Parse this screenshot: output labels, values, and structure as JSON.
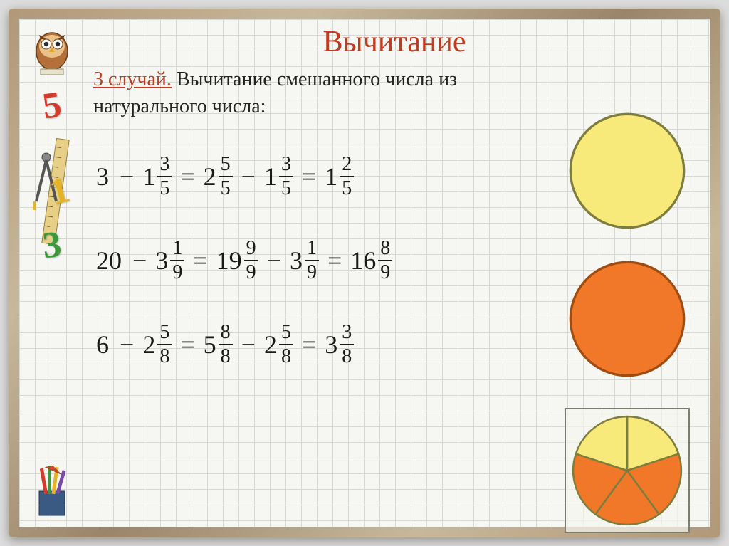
{
  "sidebar": {
    "num5": "5",
    "num5_color": "#d63a2a",
    "num1": "1",
    "num1_color": "#e6b422",
    "num3": "3",
    "num3_color": "#3a9a3a"
  },
  "title": "Вычитание",
  "title_color": "#c23b1e",
  "case_label": "3 случай.",
  "description": "Вычитание смешанного числа из натурального числа:",
  "text_color": "#232323",
  "equations": [
    {
      "lhs_whole": "3",
      "minus": "−",
      "sub_whole": "1",
      "sub_num": "3",
      "sub_den": "5",
      "eq": "=",
      "mid_whole": "2",
      "mid_num": "5",
      "mid_den": "5",
      "minus2": "−",
      "mid2_whole": "1",
      "mid2_num": "3",
      "mid2_den": "5",
      "eq2": "=",
      "res_whole": "1",
      "res_num": "2",
      "res_den": "5"
    },
    {
      "lhs_whole": "20",
      "minus": "−",
      "sub_whole": "3",
      "sub_num": "1",
      "sub_den": "9",
      "eq": "=",
      "mid_whole": "19",
      "mid_num": "9",
      "mid_den": "9",
      "minus2": "−",
      "mid2_whole": "3",
      "mid2_num": "1",
      "mid2_den": "9",
      "eq2": "=",
      "res_whole": "16",
      "res_num": "8",
      "res_den": "9"
    },
    {
      "lhs_whole": "6",
      "minus": "−",
      "sub_whole": "2",
      "sub_num": "5",
      "sub_den": "8",
      "eq": "=",
      "mid_whole": "5",
      "mid_num": "8",
      "mid_den": "8",
      "minus2": "−",
      "mid2_whole": "2",
      "mid2_num": "5",
      "mid2_den": "8",
      "eq2": "=",
      "res_whole": "3",
      "res_num": "3",
      "res_den": "8"
    }
  ],
  "circles": {
    "circle1": {
      "fill": "#f7e97a",
      "stroke": "#7d7d3e",
      "has_border_box": false
    },
    "circle2": {
      "fill": "#f07828",
      "stroke": "#a04c10",
      "has_border_box": false
    },
    "pie": {
      "slices": 5,
      "colors": [
        "#f7e97a",
        "#f07828",
        "#f07828",
        "#f07828",
        "#f7e97a"
      ],
      "stroke": "#7d7d3e",
      "has_border_box": true
    }
  },
  "grid": {
    "cell_size": 22,
    "line_color": "#d8d8d0",
    "bg_color": "#f6f6f2"
  }
}
